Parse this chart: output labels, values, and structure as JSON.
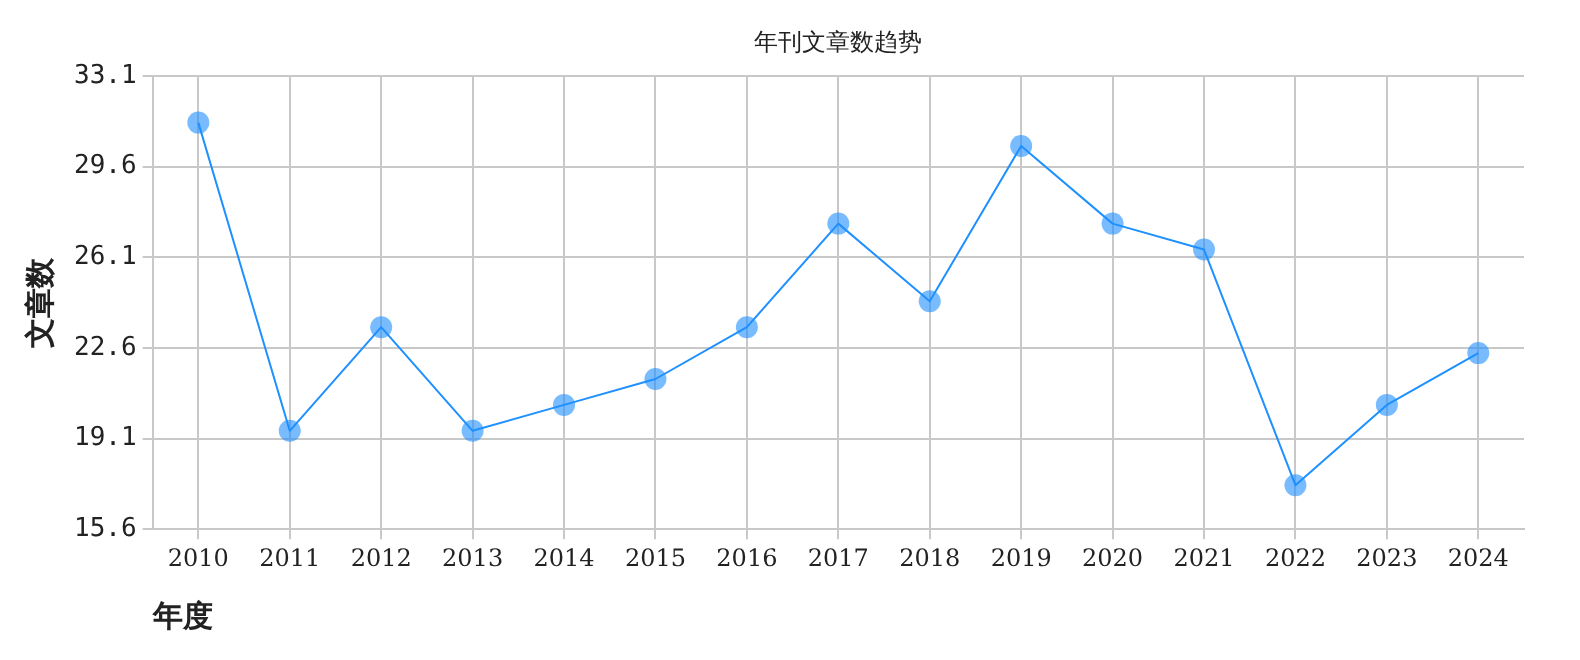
{
  "chart_data": {
    "type": "line",
    "title": "年刊文章数趋势",
    "xlabel": "年度",
    "ylabel": "文章数",
    "categories": [
      "2010",
      "2011",
      "2012",
      "2013",
      "2014",
      "2015",
      "2016",
      "2017",
      "2018",
      "2019",
      "2020",
      "2021",
      "2022",
      "2023",
      "2024"
    ],
    "series": [
      {
        "color": "#1e90ff",
        "values": [
          31.3,
          19.4,
          23.4,
          19.4,
          20.4,
          21.4,
          23.4,
          27.4,
          24.4,
          30.4,
          27.4,
          26.4,
          17.3,
          20.4,
          22.4
        ]
      }
    ],
    "ylim": [
      15.6,
      33.1
    ],
    "yticks": [
      15.6,
      19.1,
      22.6,
      26.1,
      29.6,
      33.1
    ],
    "grid": true,
    "marker": "circle",
    "line_style": "solid",
    "legend": false
  }
}
